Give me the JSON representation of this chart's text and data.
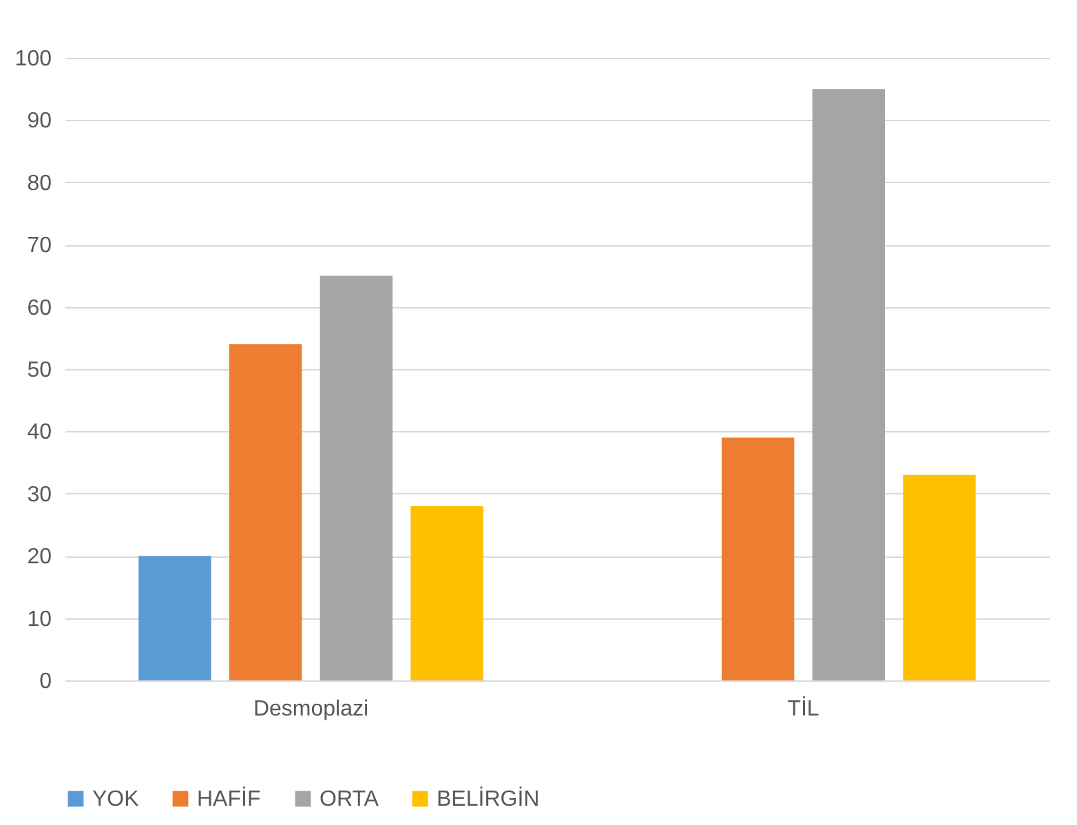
{
  "chart_data": {
    "type": "bar",
    "categories": [
      "Desmoplazi",
      "TİL"
    ],
    "series": [
      {
        "name": "YOK",
        "color": "#5b9bd5",
        "values": [
          20,
          0
        ]
      },
      {
        "name": "HAFİF",
        "color": "#ed7d31",
        "values": [
          54,
          39
        ]
      },
      {
        "name": "ORTA",
        "color": "#a5a5a5",
        "values": [
          65,
          95
        ]
      },
      {
        "name": "BELİRGİN",
        "color": "#ffc000",
        "values": [
          28,
          33
        ]
      }
    ],
    "ylim": [
      0,
      100
    ],
    "yticks": [
      0,
      10,
      20,
      30,
      40,
      50,
      60,
      70,
      80,
      90,
      100
    ],
    "grid": "y",
    "legend": "bottom"
  }
}
